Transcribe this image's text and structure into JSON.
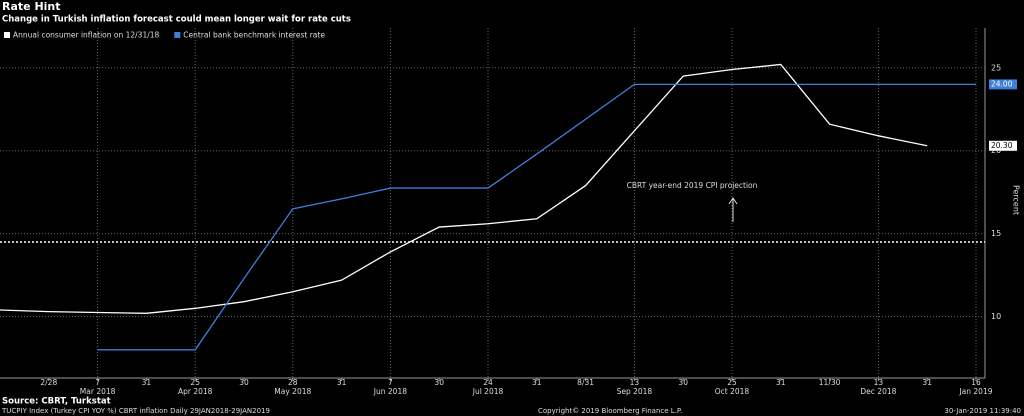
{
  "chart_data": {
    "type": "line",
    "title": "Rate Hint",
    "subtitle": "Change in Turkish inflation forecast could mean longer wait for rate cuts",
    "categories": [
      null,
      "2/28",
      "7",
      "31",
      "25",
      "30",
      "28",
      "31",
      "7",
      "30",
      "24",
      "31",
      "8/31",
      "13",
      "30",
      "25",
      "31",
      "11/30",
      "13",
      "31",
      "16"
    ],
    "category_groups": [
      null,
      null,
      "Mar 2018",
      null,
      "Apr 2018",
      null,
      "May 2018",
      null,
      "Jun 2018",
      null,
      "Jul 2018",
      null,
      null,
      "Sep 2018",
      null,
      "Oct 2018",
      null,
      null,
      "Dec 2018",
      null,
      "Jan 2019"
    ],
    "series": [
      {
        "name": "Annual consumer inflation on 12/31/18",
        "color": "#ffffff",
        "values": [
          10.4,
          10.3,
          10.25,
          10.2,
          10.5,
          10.9,
          11.5,
          12.2,
          13.9,
          15.4,
          15.6,
          15.9,
          17.9,
          21.2,
          24.5,
          24.9,
          25.2,
          21.6,
          20.9,
          20.3,
          null
        ],
        "value_labels": [
          null,
          null,
          null,
          null,
          null,
          null,
          null,
          null,
          null,
          null,
          null,
          null,
          null,
          null,
          null,
          null,
          null,
          null,
          null,
          "20.30",
          null
        ]
      },
      {
        "name": "Central bank benchmark interest rate",
        "color": "#3d7fd9",
        "values": [
          null,
          null,
          8.0,
          8.0,
          8.0,
          12.3,
          16.5,
          17.1,
          17.75,
          17.75,
          17.75,
          19.8,
          21.9,
          24,
          24,
          24,
          24,
          24,
          24,
          24,
          24
        ],
        "value_labels": [
          null,
          null,
          null,
          null,
          null,
          null,
          null,
          null,
          null,
          null,
          null,
          null,
          null,
          null,
          null,
          null,
          null,
          null,
          null,
          null,
          "24.00"
        ]
      }
    ],
    "ylim": [
      6.3,
      27.4
    ],
    "yticks": [
      10,
      15,
      20,
      25
    ],
    "y_label": "Percent",
    "grid": true,
    "reference_line": 14.5,
    "annotation": "CBRT year-end 2019 CPI projection",
    "source": "Source: CBRT, Turkstat",
    "footer_left": "TUCPIY Index (Turkey CPI YOY %) CBRT inflation  Daily 29JAN2018-29JAN2019",
    "footer_center": "Copyright© 2019 Bloomberg Finance L.P.",
    "footer_right": "30-Jan-2019 11:39:40"
  }
}
